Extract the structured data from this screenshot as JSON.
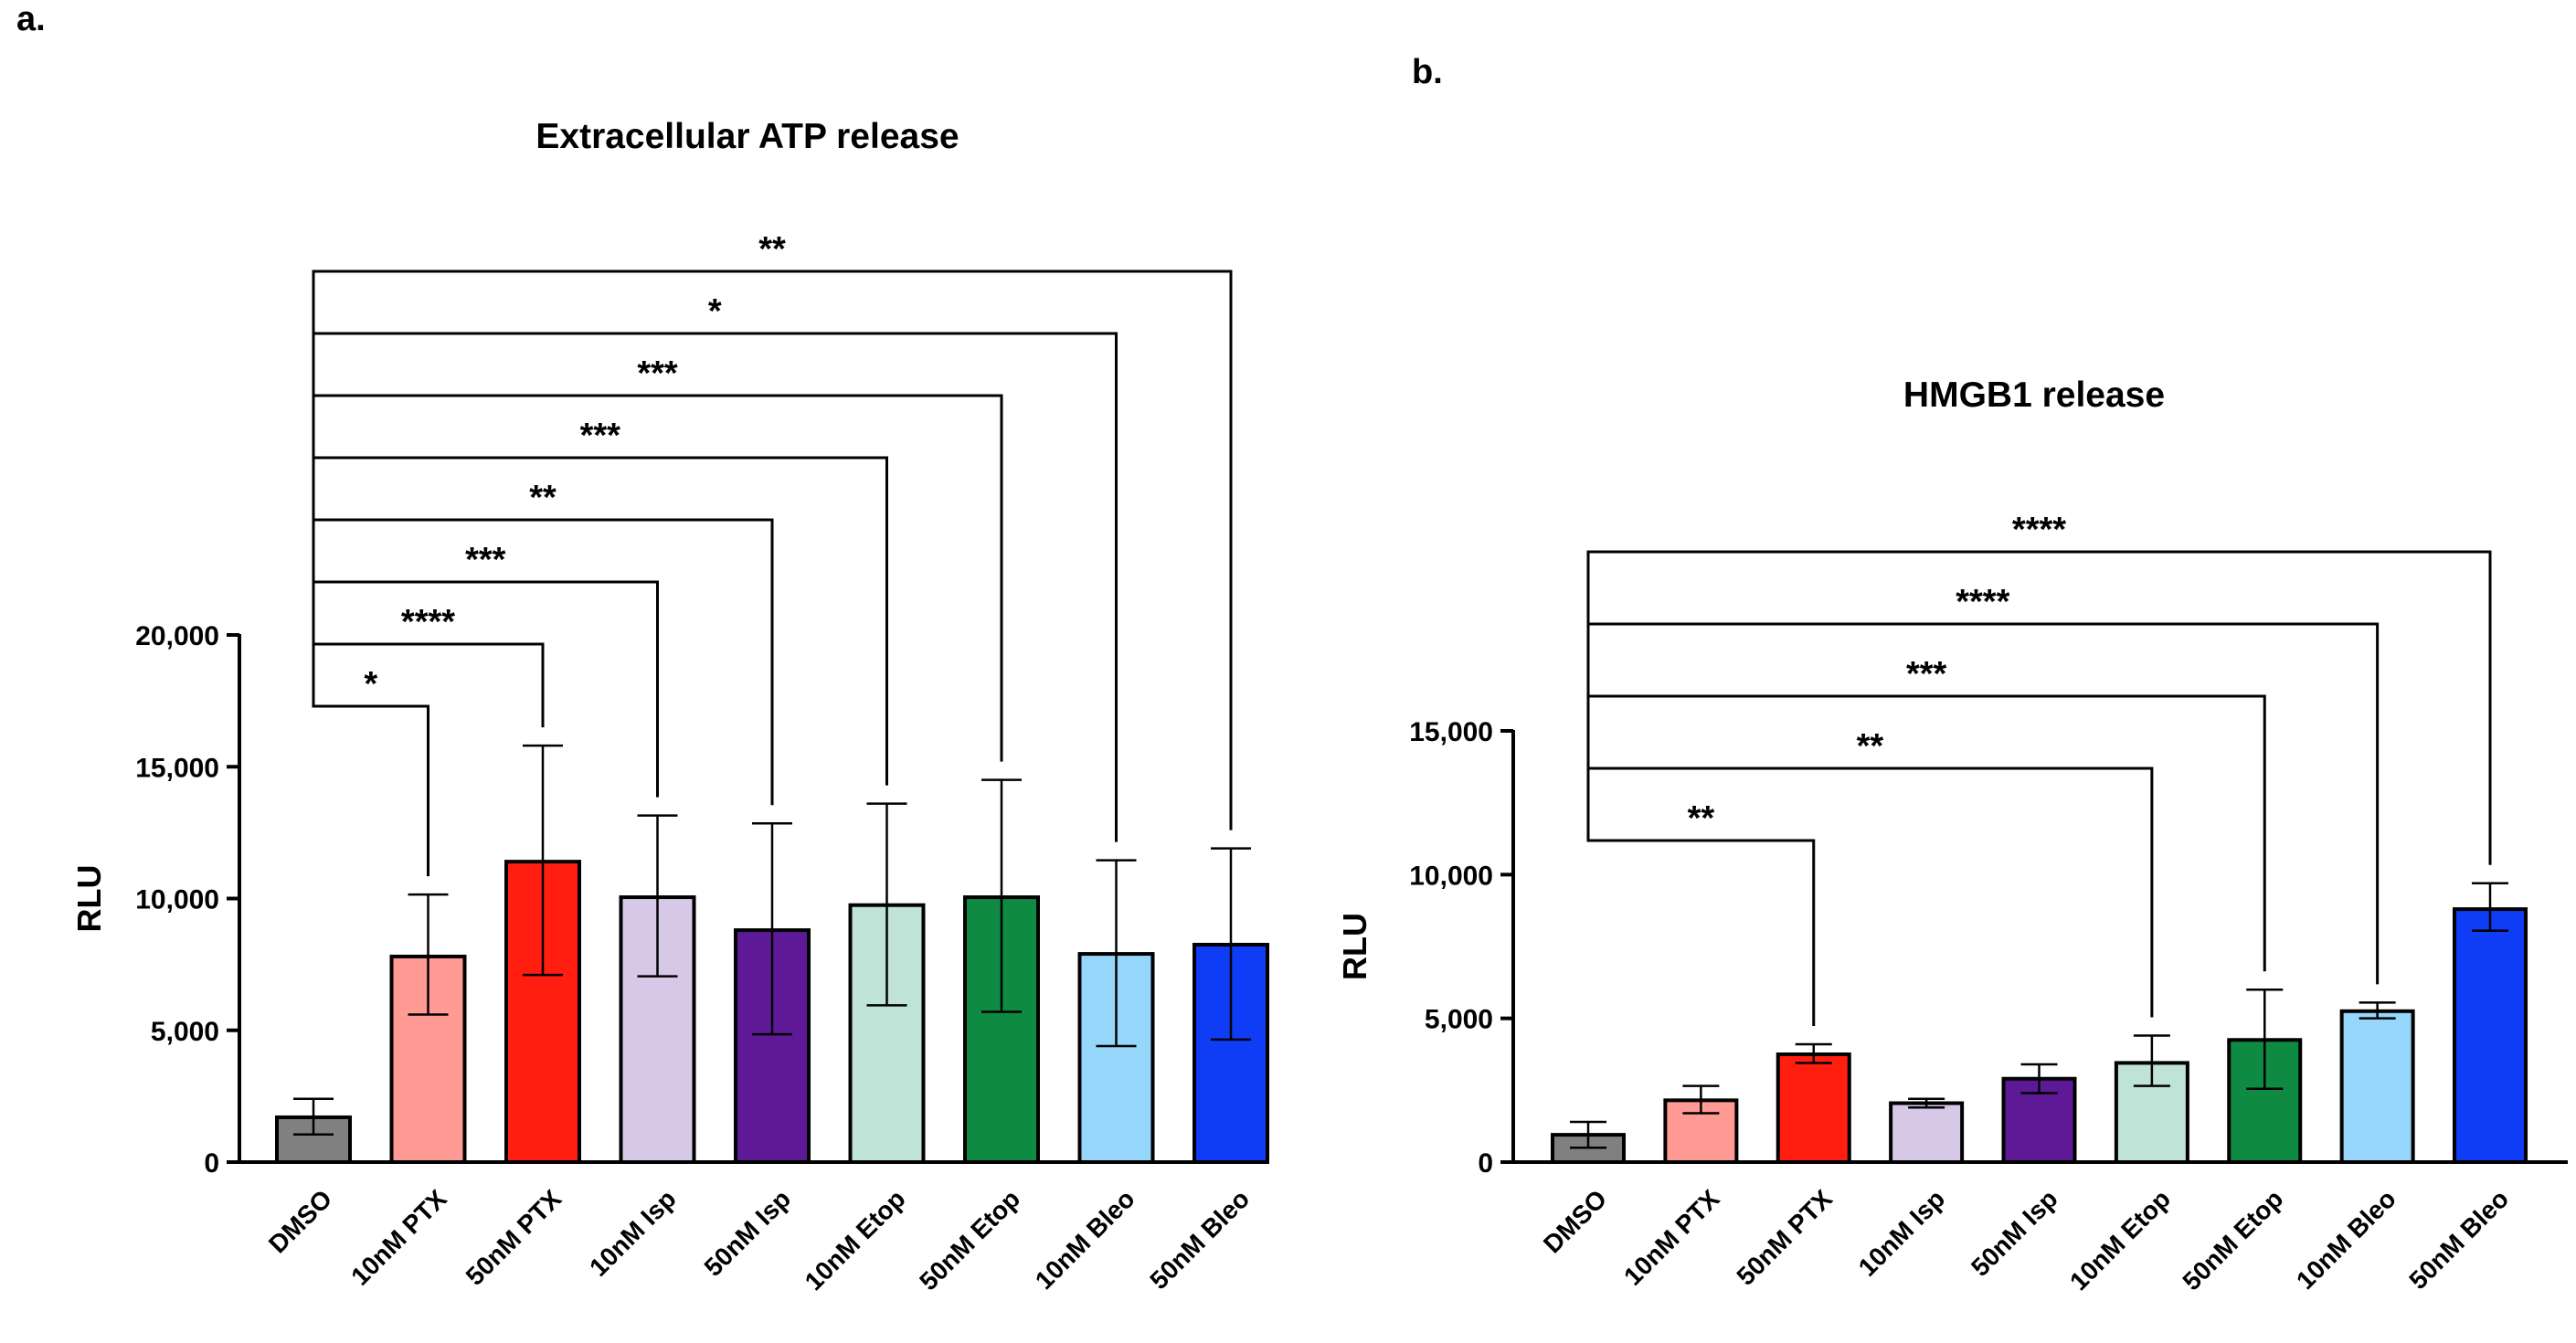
{
  "panel_labels": {
    "a": "a.",
    "b": "b."
  },
  "chart_data": [
    {
      "type": "bar",
      "title": "Extracellular ATP release",
      "xlabel": "",
      "ylabel": "RLU",
      "ylim": [
        0,
        20000
      ],
      "yticks": [
        0,
        5000,
        10000,
        15000,
        20000
      ],
      "ytick_labels": [
        "0",
        "5,000",
        "10,000",
        "15,000",
        "20,000"
      ],
      "categories": [
        "DMSO",
        "10nM PTX",
        "50nM PTX",
        "10nM Isp",
        "50nM Isp",
        "10nM Etop",
        "50nM Etop",
        "10nM Bleo",
        "50nM Bleo"
      ],
      "values": [
        1700,
        7800,
        11400,
        10050,
        8800,
        9750,
        10050,
        7900,
        8250
      ],
      "err_low": [
        1050,
        5600,
        7100,
        7050,
        4850,
        5950,
        5700,
        4400,
        4650
      ],
      "err_high": [
        2400,
        10150,
        15800,
        13150,
        12850,
        13600,
        14500,
        11450,
        11900
      ],
      "colors": [
        "#808080",
        "#FF9A95",
        "#FF1E0F",
        "#D8C8E8",
        "#5E1A96",
        "#BFE3D6",
        "#0E8A43",
        "#96D6FA",
        "#0F3DF5"
      ],
      "comparisons": [
        {
          "to": 1,
          "label": "*"
        },
        {
          "to": 2,
          "label": "****"
        },
        {
          "to": 3,
          "label": "***"
        },
        {
          "to": 4,
          "label": "**"
        },
        {
          "to": 5,
          "label": "***"
        },
        {
          "to": 6,
          "label": "***"
        },
        {
          "to": 7,
          "label": "*"
        },
        {
          "to": 8,
          "label": "**"
        }
      ]
    },
    {
      "type": "bar",
      "title": "HMGB1 release",
      "xlabel": "",
      "ylabel": "RLU",
      "ylim": [
        0,
        15000
      ],
      "yticks": [
        0,
        5000,
        10000,
        15000
      ],
      "ytick_labels": [
        "0",
        "5,000",
        "10,000",
        "15,000"
      ],
      "categories": [
        "DMSO",
        "10nM PTX",
        "50nM PTX",
        "10nM Isp",
        "50nM Isp",
        "10nM Etop",
        "50nM Etop",
        "10nM Bleo",
        "50nM Bleo"
      ],
      "values": [
        950,
        2150,
        3750,
        2050,
        2900,
        3450,
        4250,
        5250,
        8800
      ],
      "err_low": [
        500,
        1700,
        3450,
        1900,
        2400,
        2650,
        2550,
        5000,
        8050
      ],
      "err_high": [
        1400,
        2650,
        4100,
        2200,
        3400,
        4400,
        6000,
        5550,
        9700
      ],
      "colors": [
        "#808080",
        "#FF9A95",
        "#FF1E0F",
        "#D8C8E8",
        "#5E1A96",
        "#BFE3D6",
        "#0E8A43",
        "#96D6FA",
        "#0F3DF5"
      ],
      "comparisons": [
        {
          "to": 2,
          "label": "**"
        },
        {
          "to": 5,
          "label": "**"
        },
        {
          "to": 6,
          "label": "***"
        },
        {
          "to": 7,
          "label": "****"
        },
        {
          "to": 8,
          "label": "****"
        }
      ]
    }
  ]
}
